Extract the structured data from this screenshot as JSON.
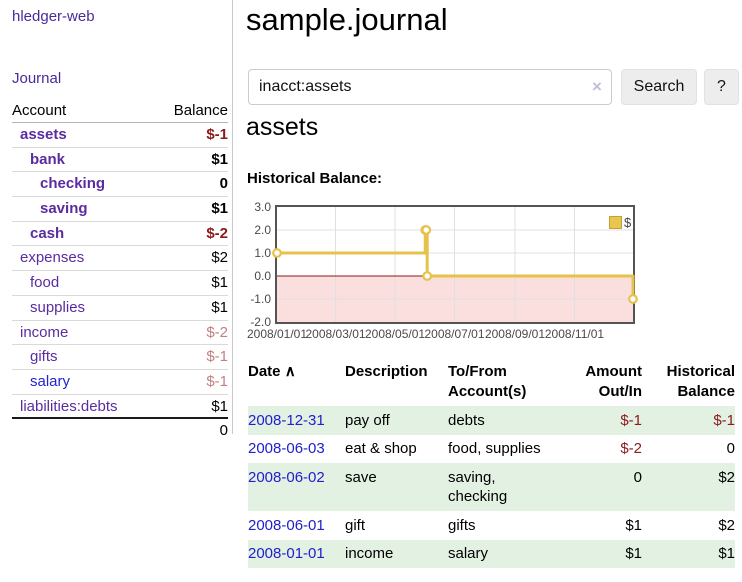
{
  "sidebar": {
    "brand": "hledger-web",
    "nav": {
      "journal": "Journal"
    },
    "accounts_table": {
      "headers": {
        "account": "Account",
        "balance": "Balance"
      },
      "rows": [
        {
          "name": "assets",
          "balance": "$-1",
          "depth": 1,
          "bold": true,
          "neg": "strong",
          "link": "purple"
        },
        {
          "name": "bank",
          "balance": "$1",
          "depth": 2,
          "bold": true,
          "neg": "none",
          "link": "purple"
        },
        {
          "name": "checking",
          "balance": "0",
          "depth": 3,
          "bold": true,
          "neg": "none",
          "link": "purple"
        },
        {
          "name": "saving",
          "balance": "$1",
          "depth": 3,
          "bold": true,
          "neg": "none",
          "link": "purple"
        },
        {
          "name": "cash",
          "balance": "$-2",
          "depth": 2,
          "bold": true,
          "neg": "strong",
          "link": "purple"
        },
        {
          "name": "expenses",
          "balance": "$2",
          "depth": 1,
          "bold": false,
          "neg": "none",
          "link": "purple"
        },
        {
          "name": "food",
          "balance": "$1",
          "depth": 2,
          "bold": false,
          "neg": "none",
          "link": "purple"
        },
        {
          "name": "supplies",
          "balance": "$1",
          "depth": 2,
          "bold": false,
          "neg": "none",
          "link": "purple"
        },
        {
          "name": "income",
          "balance": "$-2",
          "depth": 1,
          "bold": false,
          "neg": "muted",
          "link": "purple"
        },
        {
          "name": "gifts",
          "balance": "$-1",
          "depth": 2,
          "bold": false,
          "neg": "muted",
          "link": "purple"
        },
        {
          "name": "salary",
          "balance": "$-1",
          "depth": 2,
          "bold": false,
          "neg": "muted",
          "link": "blue"
        },
        {
          "name": "liabilities:debts",
          "balance": "$1",
          "depth": 1,
          "bold": false,
          "neg": "none",
          "link": "purple"
        }
      ],
      "total": "0"
    }
  },
  "main": {
    "title": "sample.journal",
    "search": {
      "query": "inacct:assets",
      "clear_icon": "×",
      "button": "Search",
      "help_button": "?"
    },
    "account_heading": "assets",
    "chart_label": "Historical Balance:",
    "chart_data": {
      "type": "line",
      "title": "Historical Balance:",
      "step": true,
      "series": [
        {
          "name": "$",
          "x": [
            "2008-01-01",
            "2008-06-01",
            "2008-06-02",
            "2008-06-03",
            "2008-12-31"
          ],
          "values": [
            1,
            2,
            2,
            0,
            -1
          ]
        }
      ],
      "x_range": [
        "2008-01-01",
        "2008-12-31"
      ],
      "ylim": [
        -2,
        3
      ],
      "y_ticks": [
        "3.0",
        "2.0",
        "1.0",
        "0.0",
        "-1.0",
        "-2.0"
      ],
      "x_ticks": [
        "2008/01/01",
        "2008/03/01",
        "2008/05/01",
        "2008/07/01",
        "2008/09/01",
        "2008/11/01"
      ],
      "legend": {
        "label": "$",
        "position": "top-right"
      },
      "grid": true,
      "line_color": "#e7c24a",
      "zero_line_color": "#8b1a1a",
      "negative_region_color": "#fbdede"
    },
    "register_table": {
      "sort_icon": "∧",
      "headers": [
        {
          "label": "Date",
          "align": "left",
          "sortable": true
        },
        {
          "label": "Description",
          "align": "left",
          "sortable": false
        },
        {
          "label": "To/From\nAccount(s)",
          "align": "left",
          "sortable": false
        },
        {
          "label": "Amount\nOut/In",
          "align": "right",
          "sortable": false
        },
        {
          "label": "Historical\nBalance",
          "align": "right",
          "sortable": false
        }
      ],
      "rows": [
        {
          "date": "2008-12-31",
          "description": "pay off",
          "accounts": "debts",
          "amount": "$-1",
          "balance": "$-1",
          "green": true
        },
        {
          "date": "2008-06-03",
          "description": "eat & shop",
          "accounts": "food, supplies",
          "amount": "$-2",
          "balance": "0",
          "green": false
        },
        {
          "date": "2008-06-02",
          "description": "save",
          "accounts": "saving, checking",
          "amount": "0",
          "balance": "$2",
          "green": true
        },
        {
          "date": "2008-06-01",
          "description": "gift",
          "accounts": "gifts",
          "amount": "$1",
          "balance": "$2",
          "green": false
        },
        {
          "date": "2008-01-01",
          "description": "income",
          "accounts": "salary",
          "amount": "$1",
          "balance": "$1",
          "green": true
        }
      ]
    }
  },
  "colors": {
    "link_purple": "#5a2ca0",
    "link_blue": "#2323cf",
    "date_link_blue": "#2020cc",
    "negative_strong": "#8b1a1a",
    "negative_muted": "#c28181",
    "row_green": "#e3f1e3",
    "chart_line_gold": "#e7c24a",
    "negative_region_pink": "#fbdede",
    "button_gray": "#ededed"
  }
}
